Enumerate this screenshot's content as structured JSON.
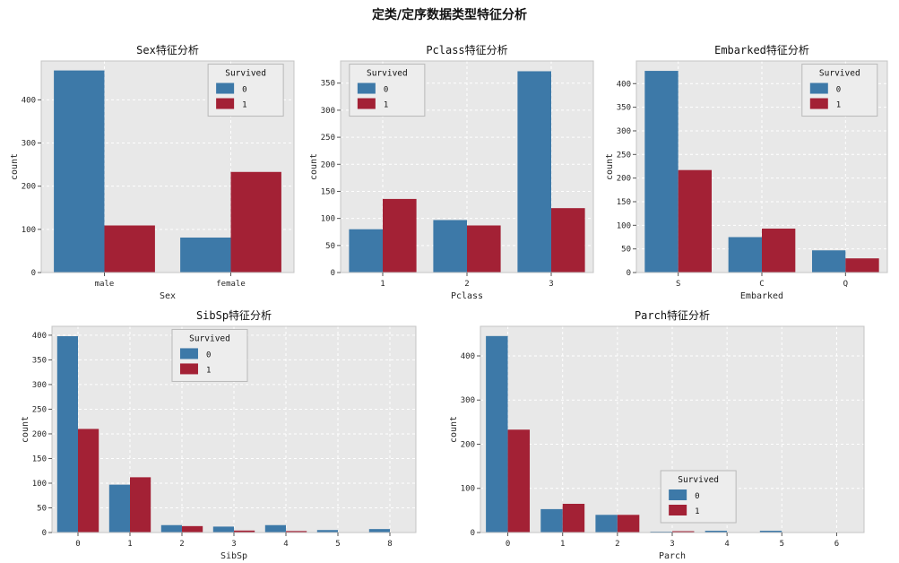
{
  "page": {
    "title": "定类/定序数据类型特征分析"
  },
  "colors": {
    "survived_0": "#3d79a8",
    "survived_1": "#a32135",
    "plot_bg": "#e8e8e8",
    "grid": "#ffffff",
    "frame": "#c4c4c4",
    "tick_text": "#262626"
  },
  "chart_data": [
    {
      "type": "bar",
      "title": "Sex特征分析",
      "xlabel": "Sex",
      "ylabel": "count",
      "categories": [
        "male",
        "female"
      ],
      "series": [
        {
          "name": "0",
          "values": [
            468,
            81
          ]
        },
        {
          "name": "1",
          "values": [
            109,
            233
          ]
        }
      ],
      "legend_title": "Survived",
      "legend_pos": "upper right",
      "ylim": [
        0,
        490
      ],
      "yticks": [
        0,
        100,
        200,
        300,
        400
      ],
      "grid": "dashed-white"
    },
    {
      "type": "bar",
      "title": "Pclass特征分析",
      "xlabel": "Pclass",
      "ylabel": "count",
      "categories": [
        "1",
        "2",
        "3"
      ],
      "series": [
        {
          "name": "0",
          "values": [
            80,
            97,
            372
          ]
        },
        {
          "name": "1",
          "values": [
            136,
            87,
            119
          ]
        }
      ],
      "legend_title": "Survived",
      "legend_pos": "upper left",
      "ylim": [
        0,
        391
      ],
      "yticks": [
        0,
        50,
        100,
        150,
        200,
        250,
        300,
        350
      ],
      "grid": "dashed-white"
    },
    {
      "type": "bar",
      "title": "Embarked特征分析",
      "xlabel": "Embarked",
      "ylabel": "count",
      "categories": [
        "S",
        "C",
        "Q"
      ],
      "series": [
        {
          "name": "0",
          "values": [
            427,
            75,
            47
          ]
        },
        {
          "name": "1",
          "values": [
            217,
            93,
            30
          ]
        }
      ],
      "legend_title": "Survived",
      "legend_pos": "upper right",
      "ylim": [
        0,
        448
      ],
      "yticks": [
        0,
        50,
        100,
        150,
        200,
        250,
        300,
        350,
        400
      ],
      "grid": "dashed-white"
    },
    {
      "type": "bar",
      "title": "SibSp特征分析",
      "xlabel": "SibSp",
      "ylabel": "count",
      "categories": [
        "0",
        "1",
        "2",
        "3",
        "4",
        "5",
        "8"
      ],
      "series": [
        {
          "name": "0",
          "values": [
            398,
            97,
            15,
            12,
            15,
            5,
            7
          ]
        },
        {
          "name": "1",
          "values": [
            210,
            112,
            13,
            4,
            3,
            0,
            0
          ]
        }
      ],
      "legend_title": "Survived",
      "legend_pos": "upper center-left",
      "ylim": [
        0,
        418
      ],
      "yticks": [
        0,
        50,
        100,
        150,
        200,
        250,
        300,
        350,
        400
      ],
      "grid": "dashed-white"
    },
    {
      "type": "bar",
      "title": "Parch特征分析",
      "xlabel": "Parch",
      "ylabel": "count",
      "categories": [
        "0",
        "1",
        "2",
        "3",
        "4",
        "5",
        "6"
      ],
      "series": [
        {
          "name": "0",
          "values": [
            445,
            53,
            40,
            2,
            4,
            4,
            1
          ]
        },
        {
          "name": "1",
          "values": [
            233,
            65,
            40,
            3,
            0,
            1,
            0
          ]
        }
      ],
      "legend_title": "Survived",
      "legend_pos": "lower center-right",
      "ylim": [
        0,
        467
      ],
      "yticks": [
        0,
        100,
        200,
        300,
        400
      ],
      "grid": "dashed-white"
    }
  ]
}
